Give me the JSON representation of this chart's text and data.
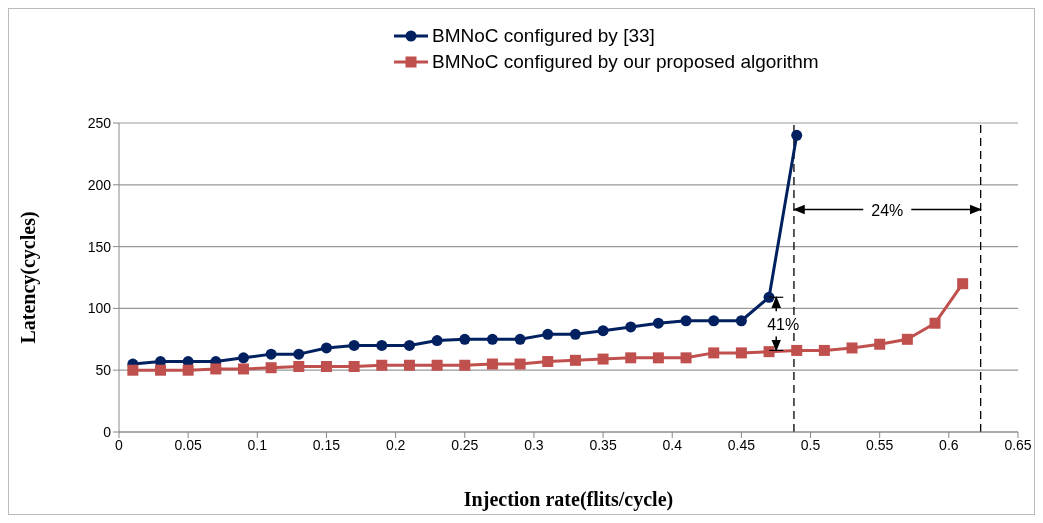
{
  "chart_data": {
    "type": "line",
    "xlabel": "Injection rate(flits/cycle)",
    "ylabel": "Latency(cycles)",
    "xlim": [
      0,
      0.65
    ],
    "xticks": [
      0,
      0.05,
      0.1,
      0.15,
      0.2,
      0.25,
      0.3,
      0.35,
      0.4,
      0.45,
      0.5,
      0.55,
      0.6,
      0.65
    ],
    "ylim": [
      0,
      250
    ],
    "yticks": [
      0,
      50,
      100,
      150,
      200,
      250
    ],
    "grid": "y",
    "legend": "top",
    "series": [
      {
        "name": "BMNoC configured by [33]",
        "color": "#002060",
        "marker": "circle",
        "x": [
          0.01,
          0.03,
          0.05,
          0.07,
          0.09,
          0.11,
          0.13,
          0.15,
          0.17,
          0.19,
          0.21,
          0.23,
          0.25,
          0.27,
          0.29,
          0.31,
          0.33,
          0.35,
          0.37,
          0.39,
          0.41,
          0.43,
          0.45,
          0.47,
          0.49
        ],
        "values": [
          55,
          57,
          57,
          57,
          60,
          63,
          63,
          68,
          70,
          70,
          70,
          74,
          75,
          75,
          75,
          79,
          79,
          82,
          85,
          88,
          90,
          90,
          90,
          109,
          240
        ]
      },
      {
        "name": "BMNoC configured by our proposed algorithm",
        "color": "#c0504d",
        "marker": "square",
        "x": [
          0.01,
          0.03,
          0.05,
          0.07,
          0.09,
          0.11,
          0.13,
          0.15,
          0.17,
          0.19,
          0.21,
          0.23,
          0.25,
          0.27,
          0.29,
          0.31,
          0.33,
          0.35,
          0.37,
          0.39,
          0.41,
          0.43,
          0.45,
          0.47,
          0.49,
          0.51,
          0.53,
          0.55,
          0.57,
          0.59,
          0.61
        ],
        "values": [
          50,
          50,
          50,
          51,
          51,
          52,
          53,
          53,
          53,
          54,
          54,
          54,
          54,
          55,
          55,
          57,
          58,
          59,
          60,
          60,
          60,
          64,
          64,
          65,
          66,
          66,
          68,
          71,
          75,
          88,
          120
        ]
      }
    ],
    "ref_lines": [
      {
        "axis": "x",
        "value": 0.488,
        "line_style": "dashed",
        "color": "#000000"
      },
      {
        "axis": "x",
        "value": 0.623,
        "line_style": "dashed",
        "color": "#000000"
      }
    ],
    "annotations": [
      {
        "text": "24%",
        "x": 0.623,
        "y": 180
      },
      {
        "text": "41%",
        "x": 0.47,
        "y": 109
      }
    ]
  }
}
